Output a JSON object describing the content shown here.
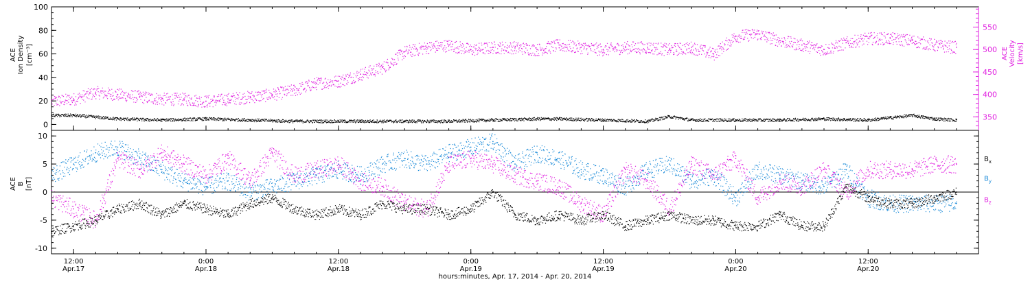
{
  "colors": {
    "axis": "#000000",
    "density": "#000000",
    "velocity": "#e020e0",
    "bx": "#000000",
    "by": "#1a8ad8",
    "bz": "#e020e0"
  },
  "chart_data": [
    {
      "type": "scatter",
      "panel": "top",
      "ylabel_lines": [
        "ACE",
        "Ion Density"
      ],
      "ylabel_unit": "[cm⁻³]",
      "ylim": [
        -5,
        100
      ],
      "yticks": [
        "0",
        "20",
        "40",
        "60",
        "80",
        "100"
      ],
      "ytick_values": [
        0,
        20,
        40,
        60,
        80,
        100
      ],
      "y2label_lines": [
        "ACE",
        "Velocity"
      ],
      "y2label_unit": "[km/s]",
      "y2lim": [
        320,
        595
      ],
      "y2ticks": [
        "350",
        "400",
        "450",
        "500",
        "550"
      ],
      "y2tick_values": [
        350,
        400,
        450,
        500,
        550
      ],
      "xlim_hours": [
        -2,
        82
      ],
      "series": [
        {
          "color_key": "density",
          "axis": "left",
          "x_hours": [
            -2,
            0,
            4,
            8,
            12,
            16,
            20,
            24,
            26,
            30,
            34,
            38,
            42,
            44,
            48,
            52,
            54,
            56,
            60,
            64,
            68,
            72,
            74,
            76,
            78,
            80
          ],
          "y": [
            8,
            8,
            5,
            4,
            5,
            4,
            3,
            3,
            3,
            3,
            3,
            4,
            5,
            5,
            4,
            3,
            7,
            4,
            4,
            4,
            5,
            4,
            6,
            8,
            5,
            4
          ]
        },
        {
          "color_key": "velocity",
          "axis": "right",
          "x_hours": [
            -2,
            0,
            2,
            4,
            6,
            8,
            10,
            12,
            14,
            16,
            18,
            20,
            22,
            24,
            26,
            28,
            30,
            32,
            34,
            36,
            38,
            40,
            42,
            44,
            46,
            48,
            50,
            52,
            54,
            56,
            58,
            60,
            62,
            64,
            66,
            68,
            70,
            72,
            74,
            76,
            78,
            80
          ],
          "y": [
            385,
            390,
            405,
            400,
            395,
            390,
            390,
            385,
            390,
            395,
            400,
            410,
            425,
            430,
            445,
            460,
            495,
            505,
            510,
            500,
            505,
            505,
            500,
            510,
            505,
            500,
            505,
            505,
            500,
            505,
            490,
            530,
            535,
            520,
            510,
            500,
            515,
            525,
            525,
            520,
            510,
            505
          ]
        }
      ]
    },
    {
      "type": "scatter",
      "panel": "bottom",
      "ylabel_lines": [
        "ACE",
        "B"
      ],
      "ylabel_unit": "[nT]",
      "ylim": [
        -11,
        11
      ],
      "yticks": [
        "10",
        "5",
        "0",
        "-5",
        "-10"
      ],
      "ytick_values": [
        10,
        5,
        0,
        -5,
        -10
      ],
      "zero_line": true,
      "xlim_hours": [
        -2,
        82
      ],
      "xticks_time": [
        "12:00",
        "0:00",
        "12:00",
        "0:00",
        "12:00",
        "0:00",
        "12:00"
      ],
      "xticks_date": [
        "Apr.17",
        "Apr.18",
        "Apr.18",
        "Apr.19",
        "Apr.19",
        "Apr.20",
        "Apr.20"
      ],
      "xtick_hours": [
        0,
        12,
        24,
        36,
        48,
        60,
        72
      ],
      "xlabel": "hours:minutes, Apr. 17, 2014 - Apr. 20, 2014",
      "legend_placement": "right",
      "series": [
        {
          "name": "Bx",
          "color_key": "bx",
          "x_hours": [
            -2,
            0,
            2,
            4,
            6,
            8,
            10,
            12,
            14,
            16,
            18,
            20,
            22,
            24,
            26,
            28,
            30,
            32,
            34,
            36,
            38,
            40,
            42,
            44,
            46,
            48,
            50,
            52,
            54,
            56,
            58,
            60,
            62,
            64,
            66,
            68,
            70,
            72,
            74,
            76,
            78,
            80
          ],
          "y": [
            -7,
            -6,
            -5,
            -3,
            -2,
            -4,
            -2,
            -3,
            -4,
            -2,
            -1,
            -3,
            -4,
            -3,
            -4,
            -2,
            -3,
            -3,
            -4,
            -3,
            0,
            -4,
            -5,
            -4,
            -5,
            -4,
            -6,
            -5,
            -4,
            -5,
            -5,
            -6,
            -6,
            -4,
            -6,
            -6,
            1,
            -1,
            -2,
            -2,
            -1,
            0
          ]
        },
        {
          "name": "By",
          "color_key": "by",
          "x_hours": [
            -2,
            0,
            2,
            4,
            6,
            8,
            10,
            12,
            14,
            16,
            18,
            20,
            22,
            24,
            26,
            28,
            30,
            32,
            34,
            36,
            38,
            40,
            42,
            44,
            46,
            48,
            50,
            52,
            54,
            56,
            58,
            60,
            62,
            64,
            66,
            68,
            70,
            72,
            74,
            76,
            78,
            80
          ],
          "y": [
            3,
            5,
            7,
            8,
            6,
            4,
            2,
            1,
            2,
            0,
            1,
            2,
            3,
            4,
            3,
            5,
            6,
            5,
            7,
            8,
            9,
            5,
            7,
            6,
            4,
            3,
            1,
            4,
            5,
            2,
            3,
            -1,
            4,
            3,
            2,
            1,
            4,
            -1,
            -2,
            -2,
            -2,
            -2
          ]
        },
        {
          "name": "Bz",
          "color_key": "bz",
          "x_hours": [
            -2,
            0,
            2,
            4,
            6,
            8,
            10,
            12,
            14,
            16,
            18,
            20,
            22,
            24,
            26,
            28,
            30,
            32,
            34,
            36,
            38,
            40,
            42,
            44,
            46,
            48,
            50,
            52,
            54,
            56,
            58,
            60,
            62,
            64,
            66,
            68,
            70,
            72,
            74,
            76,
            78,
            80
          ],
          "y": [
            -1,
            -3,
            -5,
            6,
            4,
            7,
            5,
            3,
            6,
            2,
            7,
            3,
            4,
            5,
            2,
            1,
            -2,
            -3,
            5,
            6,
            5,
            3,
            2,
            1,
            -2,
            -4,
            4,
            2,
            -3,
            5,
            3,
            6,
            -1,
            2,
            1,
            4,
            0,
            4,
            4,
            4,
            5,
            5
          ]
        }
      ],
      "legend": [
        {
          "label": "B",
          "sub": "x",
          "color_key": "bx"
        },
        {
          "label": "B",
          "sub": "y",
          "color_key": "by"
        },
        {
          "label": "B",
          "sub": "z",
          "color_key": "bz"
        }
      ]
    }
  ]
}
